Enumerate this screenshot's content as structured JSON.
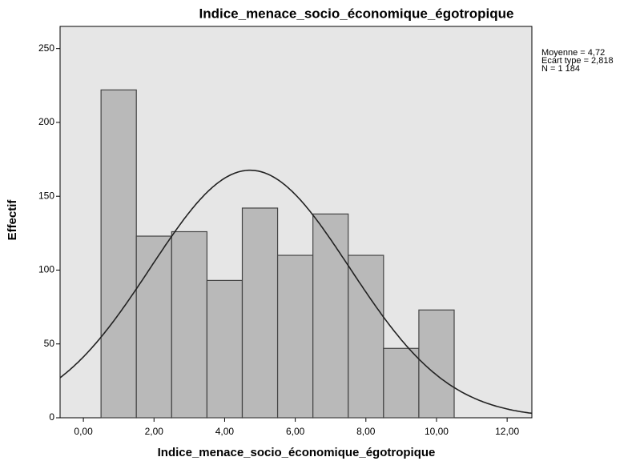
{
  "chart_data": {
    "type": "histogram",
    "title": "Indice_menace_socio_économique_égotropique",
    "x_label": "Indice_menace_socio_économique_égotropique",
    "y_label": "Effectif",
    "bins": [
      0.5,
      1.5,
      2.5,
      3.5,
      4.5,
      5.5,
      6.5,
      7.5,
      8.5,
      9.5,
      10.5
    ],
    "values": [
      222,
      123,
      126,
      93,
      142,
      110,
      138,
      110,
      47,
      73
    ],
    "color": "#b9b9b9",
    "xlim": [
      -0.66,
      12.7
    ],
    "ylim": [
      0,
      265
    ],
    "xticks": [
      {
        "value": 0,
        "label": "0,00"
      },
      {
        "value": 2,
        "label": "2,00"
      },
      {
        "value": 4,
        "label": "4,00"
      },
      {
        "value": 6,
        "label": "6,00"
      },
      {
        "value": 8,
        "label": "8,00"
      },
      {
        "value": 10,
        "label": "10,00"
      },
      {
        "value": 12,
        "label": "12,00"
      }
    ],
    "yticks": [
      0,
      50,
      100,
      150,
      200,
      250
    ],
    "stats": [
      {
        "label": "Moyenne = 4,72",
        "value": 4.72
      },
      {
        "label": "Ecart type = 2,818",
        "value": 2.818
      },
      {
        "label": "N = 1 184",
        "value": 1184
      }
    ]
  }
}
